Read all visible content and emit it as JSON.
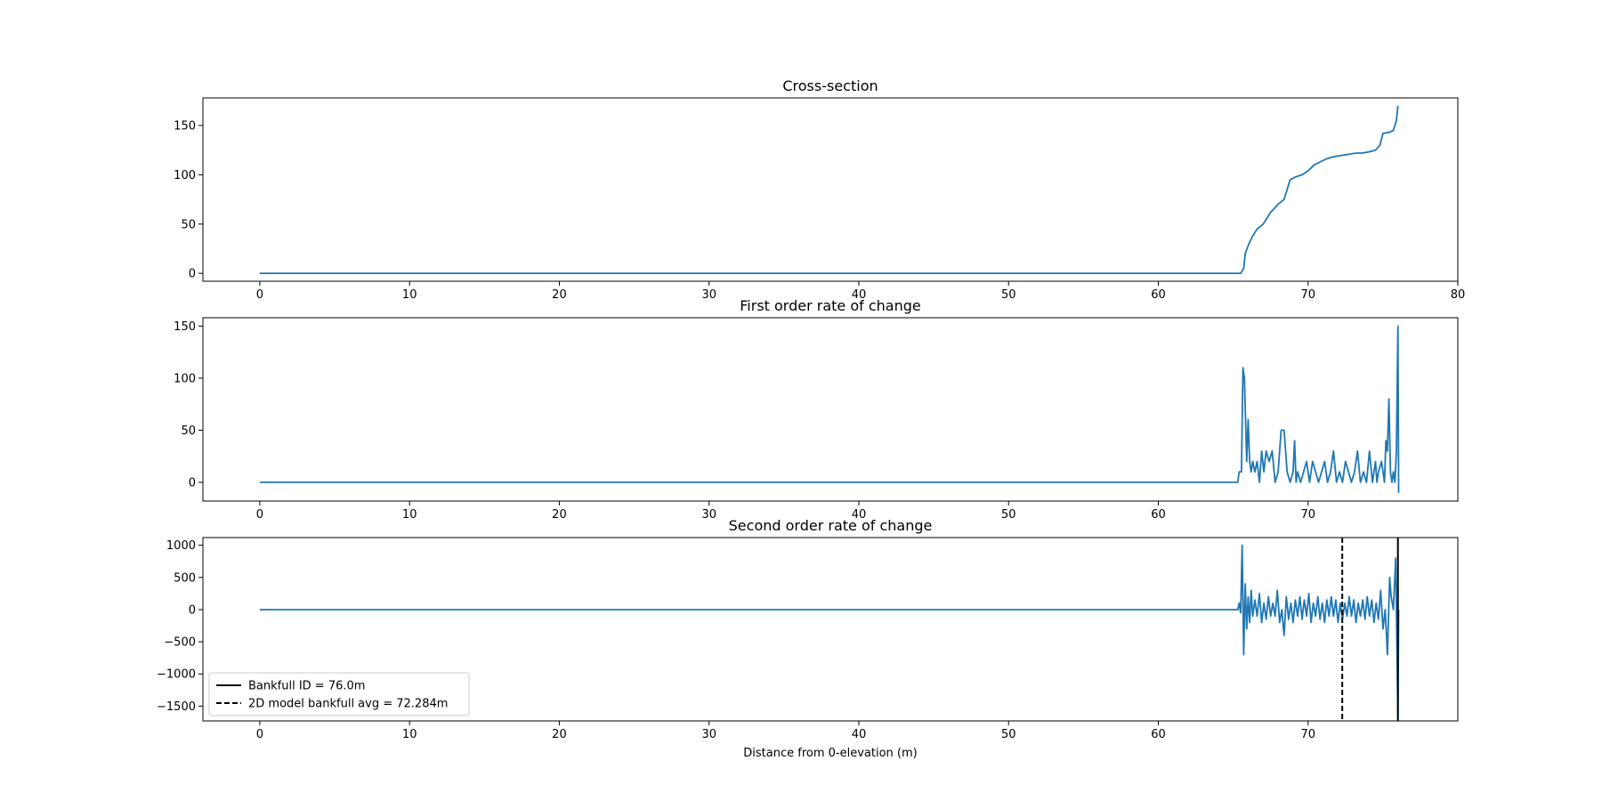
{
  "chart_data": [
    {
      "type": "line",
      "title": "Cross-section",
      "xlabel": "",
      "ylabel": "",
      "xlim": [
        -3.8,
        80
      ],
      "ylim": [
        -8,
        178
      ],
      "xticks": [
        0,
        10,
        20,
        30,
        40,
        50,
        60,
        70,
        80
      ],
      "yticks": [
        0,
        50,
        100,
        150
      ],
      "grid": false,
      "series": [
        {
          "color": "#1f77b4",
          "x": [
            0,
            65.5,
            65.7,
            65.8,
            66,
            66.3,
            66.6,
            67.0,
            67.5,
            68.0,
            68.4,
            68.8,
            69.2,
            69.6,
            70.0,
            70.4,
            70.8,
            71.2,
            71.6,
            72.0,
            72.4,
            72.8,
            73.2,
            73.6,
            74.0,
            74.5,
            74.8,
            75.0,
            75.4,
            75.7,
            75.9,
            76.0
          ],
          "values": [
            0,
            0,
            5,
            20,
            28,
            38,
            45,
            50,
            62,
            70,
            75,
            95,
            98,
            100,
            104,
            110,
            113,
            116,
            118,
            119,
            120,
            121,
            122,
            122,
            123,
            125,
            130,
            142,
            143,
            145,
            155,
            170
          ]
        }
      ]
    },
    {
      "type": "line",
      "title": "First order rate of change",
      "xlabel": "",
      "ylabel": "",
      "xlim": [
        -3.8,
        80
      ],
      "ylim": [
        -18,
        158
      ],
      "xticks": [
        0,
        10,
        20,
        30,
        40,
        50,
        60,
        70
      ],
      "yticks": [
        0,
        50,
        100,
        150
      ],
      "grid": false,
      "series": [
        {
          "color": "#1f77b4",
          "x": [
            0,
            65.3,
            65.4,
            65.55,
            65.65,
            65.75,
            65.9,
            66.0,
            66.1,
            66.2,
            66.3,
            66.45,
            66.6,
            66.75,
            66.9,
            67.05,
            67.2,
            67.4,
            67.6,
            67.8,
            68.0,
            68.2,
            68.4,
            68.6,
            68.8,
            69.0,
            69.1,
            69.2,
            69.3,
            69.5,
            69.7,
            69.9,
            70.1,
            70.3,
            70.5,
            70.7,
            70.9,
            71.1,
            71.3,
            71.5,
            71.7,
            71.9,
            72.1,
            72.3,
            72.5,
            72.7,
            72.9,
            73.1,
            73.3,
            73.5,
            73.7,
            73.9,
            74.1,
            74.3,
            74.5,
            74.6,
            74.7,
            74.9,
            75.1,
            75.2,
            75.3,
            75.4,
            75.5,
            75.6,
            75.7,
            75.8,
            75.9,
            76.0,
            76.05
          ],
          "values": [
            0,
            0,
            10,
            10,
            110,
            100,
            20,
            60,
            20,
            10,
            20,
            10,
            20,
            0,
            30,
            10,
            30,
            20,
            30,
            0,
            10,
            50,
            50,
            10,
            0,
            10,
            40,
            0,
            10,
            0,
            10,
            20,
            0,
            20,
            10,
            0,
            10,
            20,
            0,
            10,
            30,
            0,
            10,
            0,
            20,
            10,
            0,
            10,
            30,
            0,
            10,
            0,
            30,
            0,
            20,
            0,
            10,
            20,
            0,
            40,
            30,
            80,
            10,
            0,
            10,
            0,
            30,
            150,
            -10
          ]
        }
      ]
    },
    {
      "type": "line",
      "title": "Second order rate of change",
      "xlabel": "Distance from 0-elevation (m)",
      "ylabel": "",
      "xlim": [
        -3.8,
        80
      ],
      "ylim": [
        -1730,
        1120
      ],
      "xticks": [
        0,
        10,
        20,
        30,
        40,
        50,
        60,
        70
      ],
      "yticks": [
        1000,
        500,
        0,
        -500,
        -1000,
        -1500
      ],
      "ytick_labels": [
        "1000",
        "500",
        "0",
        "−500",
        "−1000",
        "−1500"
      ],
      "grid": false,
      "legend": "lower-left",
      "series": [
        {
          "color": "#1f77b4",
          "x": [
            0,
            65.3,
            65.4,
            65.5,
            65.6,
            65.7,
            65.8,
            65.9,
            66.0,
            66.1,
            66.2,
            66.3,
            66.45,
            66.6,
            66.75,
            66.9,
            67.05,
            67.2,
            67.35,
            67.5,
            67.65,
            67.8,
            67.95,
            68.1,
            68.25,
            68.4,
            68.55,
            68.7,
            68.85,
            69.0,
            69.15,
            69.3,
            69.45,
            69.6,
            69.75,
            69.9,
            70.05,
            70.2,
            70.35,
            70.5,
            70.65,
            70.8,
            70.95,
            71.1,
            71.25,
            71.4,
            71.55,
            71.7,
            71.85,
            72.0,
            72.15,
            72.3,
            72.45,
            72.6,
            72.75,
            72.9,
            73.05,
            73.2,
            73.35,
            73.5,
            73.65,
            73.8,
            73.95,
            74.1,
            74.25,
            74.4,
            74.55,
            74.7,
            74.85,
            75.0,
            75.15,
            75.3,
            75.45,
            75.55,
            75.7,
            75.85,
            76.0,
            76.05
          ],
          "values": [
            0,
            0,
            100,
            -50,
            1000,
            -700,
            400,
            -300,
            200,
            -200,
            300,
            -100,
            150,
            -100,
            250,
            -200,
            100,
            -150,
            200,
            -100,
            100,
            -100,
            300,
            -200,
            0,
            -400,
            200,
            -150,
            100,
            -200,
            150,
            -100,
            200,
            -150,
            150,
            -100,
            250,
            -200,
            100,
            -100,
            200,
            -150,
            100,
            -200,
            150,
            -100,
            200,
            -100,
            150,
            -200,
            100,
            -150,
            100,
            -100,
            200,
            -100,
            150,
            -200,
            100,
            -100,
            150,
            -150,
            200,
            -100,
            150,
            -200,
            100,
            -150,
            300,
            -300,
            0,
            -700,
            500,
            200,
            0,
            800,
            -1700,
            0
          ]
        }
      ],
      "vlines": [
        {
          "x": 76.0,
          "style": "solid",
          "color": "#000000",
          "label": "Bankfull ID = 76.0m"
        },
        {
          "x": 72.284,
          "style": "dashed",
          "color": "#000000",
          "label": "2D model bankfull avg = 72.284m"
        }
      ]
    }
  ]
}
